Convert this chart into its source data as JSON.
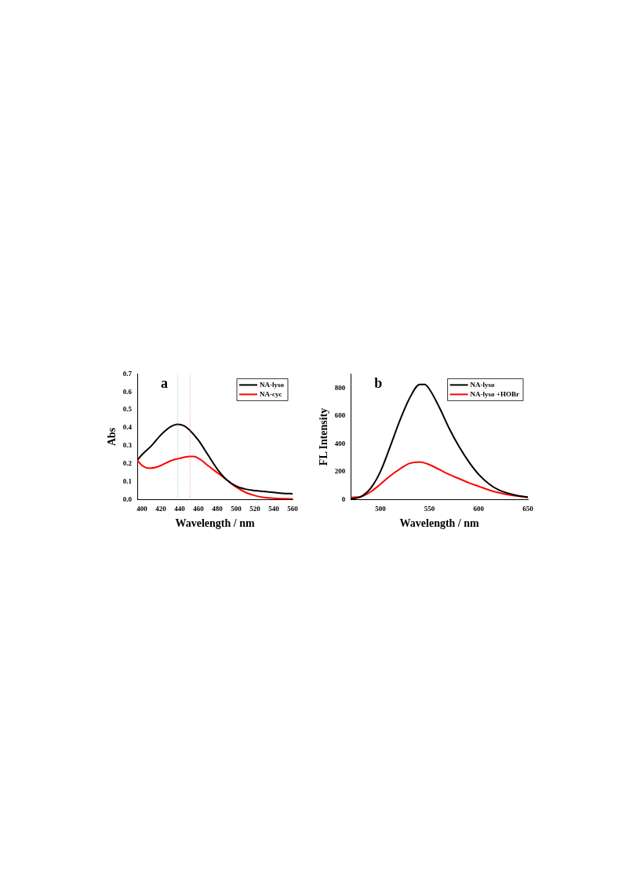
{
  "chart_data": [
    {
      "type": "line",
      "annotations": [
        "a"
      ],
      "xlabel": "Wavelength / nm",
      "ylabel": "Abs",
      "xlim": [
        395,
        560
      ],
      "xticks": [
        400,
        420,
        440,
        460,
        480,
        500,
        520,
        540,
        560
      ],
      "ylim": [
        0,
        0.7
      ],
      "yticks": [
        {
          "value": 0,
          "label": "0.0"
        },
        0.1,
        0.2,
        0.3,
        0.4,
        0.5,
        0.6,
        0.7
      ],
      "grid": false,
      "legend": "top right",
      "marker": "none",
      "line_style": "solid",
      "ref_lines": [
        {
          "axis": "x",
          "value": 438,
          "color": "#aaaaaa",
          "line_style": "dotted"
        },
        {
          "axis": "x",
          "value": 451,
          "color": "#e88080",
          "line_style": "dotted"
        }
      ],
      "series": [
        {
          "name": "NA-lyso",
          "color": "#000000",
          "x": [
            395,
            400,
            410,
            420,
            430,
            438,
            445,
            450,
            460,
            470,
            480,
            490,
            500,
            510,
            520,
            530,
            540,
            550,
            560
          ],
          "values": [
            0.22,
            0.25,
            0.3,
            0.36,
            0.405,
            0.42,
            0.41,
            0.39,
            0.33,
            0.25,
            0.17,
            0.11,
            0.075,
            0.058,
            0.05,
            0.045,
            0.04,
            0.035,
            0.032
          ]
        },
        {
          "name": "NA-cyc",
          "color": "#ff0000",
          "x": [
            395,
            400,
            408,
            415,
            420,
            430,
            440,
            450,
            455,
            460,
            470,
            480,
            490,
            500,
            510,
            520,
            530,
            540,
            550,
            560
          ],
          "values": [
            0.22,
            0.19,
            0.175,
            0.18,
            0.19,
            0.215,
            0.23,
            0.24,
            0.24,
            0.23,
            0.19,
            0.15,
            0.11,
            0.07,
            0.04,
            0.022,
            0.012,
            0.007,
            0.005,
            0.004
          ]
        }
      ]
    },
    {
      "type": "line",
      "annotations": [
        "b"
      ],
      "xlabel": "Wavelength / nm",
      "ylabel": "FL Intensity",
      "xlim": [
        470,
        650
      ],
      "xticks": [
        500,
        550,
        600,
        650
      ],
      "ylim": [
        0,
        900
      ],
      "yticks": [
        0,
        200,
        400,
        600,
        800
      ],
      "grid": false,
      "legend": "top right",
      "marker": "none",
      "line_style": "solid",
      "series": [
        {
          "name": "NA-lyso",
          "color": "#000000",
          "x": [
            470,
            480,
            490,
            500,
            510,
            520,
            530,
            540,
            545,
            550,
            560,
            570,
            580,
            590,
            600,
            610,
            620,
            630,
            640,
            650
          ],
          "values": [
            5,
            20,
            80,
            200,
            380,
            570,
            730,
            825,
            825,
            790,
            660,
            510,
            380,
            270,
            180,
            115,
            70,
            45,
            28,
            18
          ]
        },
        {
          "name": "NA-lyso +HOBr",
          "color": "#ff0000",
          "x": [
            470,
            480,
            490,
            500,
            510,
            520,
            530,
            540,
            550,
            560,
            570,
            580,
            590,
            600,
            610,
            620,
            630,
            640,
            650
          ],
          "values": [
            15,
            20,
            55,
            110,
            170,
            220,
            260,
            270,
            250,
            215,
            180,
            150,
            120,
            95,
            70,
            50,
            35,
            25,
            15
          ]
        }
      ]
    }
  ]
}
